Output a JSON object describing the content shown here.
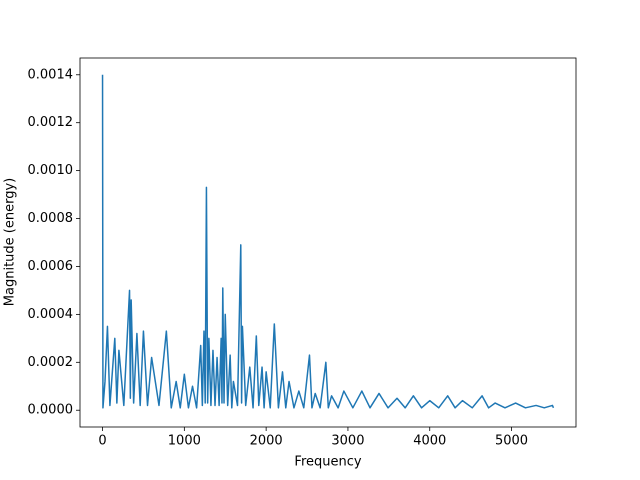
{
  "chart_data": {
    "type": "line",
    "x_label": "Frequency",
    "y_label": "Magnitude (energy)",
    "color": "#1f77b4",
    "x": [
      0,
      5,
      30,
      60,
      90,
      150,
      175,
      200,
      260,
      330,
      340,
      350,
      380,
      420,
      460,
      500,
      550,
      600,
      690,
      780,
      840,
      900,
      950,
      1000,
      1050,
      1100,
      1150,
      1200,
      1220,
      1240,
      1255,
      1270,
      1285,
      1300,
      1325,
      1350,
      1375,
      1400,
      1425,
      1450,
      1460,
      1470,
      1485,
      1500,
      1530,
      1560,
      1580,
      1600,
      1650,
      1690,
      1700,
      1710,
      1750,
      1800,
      1840,
      1880,
      1910,
      1950,
      1975,
      2000,
      2050,
      2100,
      2150,
      2200,
      2240,
      2280,
      2340,
      2400,
      2460,
      2530,
      2560,
      2600,
      2660,
      2730,
      2760,
      2800,
      2880,
      2950,
      3060,
      3170,
      3270,
      3380,
      3490,
      3600,
      3700,
      3800,
      3900,
      4000,
      4110,
      4220,
      4310,
      4400,
      4520,
      4640,
      4720,
      4800,
      4920,
      5050,
      5170,
      5300,
      5400,
      5500,
      5512.5
    ],
    "values": [
      0.0014,
      1e-05,
      0.00012,
      0.00035,
      2e-05,
      0.0003,
      3e-05,
      0.00025,
      2e-05,
      0.0005,
      5e-05,
      0.00046,
      3e-05,
      0.00032,
      2e-05,
      0.00033,
      2e-05,
      0.00022,
      2e-05,
      0.00033,
      1e-05,
      0.00012,
      1e-05,
      0.00015,
      1e-05,
      0.0001,
      1e-05,
      0.00027,
      2e-05,
      0.00033,
      3e-05,
      0.00093,
      3e-05,
      0.0003,
      2e-05,
      0.00025,
      2e-05,
      0.00022,
      2e-05,
      0.0003,
      3e-05,
      0.00051,
      3e-05,
      0.0004,
      2e-05,
      0.00023,
      1e-05,
      0.00012,
      2e-05,
      0.00069,
      3e-05,
      0.00035,
      2e-05,
      0.00018,
      1e-05,
      0.00031,
      2e-05,
      0.00018,
      1e-05,
      0.00016,
      1e-05,
      0.00036,
      1e-05,
      0.00016,
      1e-05,
      0.00012,
      1e-05,
      8e-05,
      1e-05,
      0.00023,
      1e-05,
      7e-05,
      1e-05,
      0.0002,
      1e-05,
      6e-05,
      1e-05,
      8e-05,
      1e-05,
      8e-05,
      1e-05,
      7e-05,
      1e-05,
      5e-05,
      1e-05,
      6e-05,
      1e-05,
      4e-05,
      1e-05,
      6e-05,
      1e-05,
      4e-05,
      1e-05,
      6e-05,
      1e-05,
      3e-05,
      1e-05,
      3e-05,
      1e-05,
      2e-05,
      1e-05,
      2e-05,
      1e-05
    ],
    "xlim": [
      -275.6,
      5788.1
    ],
    "ylim": [
      -7e-05,
      0.00147
    ],
    "xticks": [
      0,
      1000,
      2000,
      3000,
      4000,
      5000
    ],
    "yticks": [
      {
        "value": 0,
        "label": "0.0000"
      },
      0.0002,
      0.0004,
      0.0006,
      0.0008,
      {
        "value": 0.001,
        "label": "0.0010"
      },
      0.0012,
      0.0014
    ]
  }
}
